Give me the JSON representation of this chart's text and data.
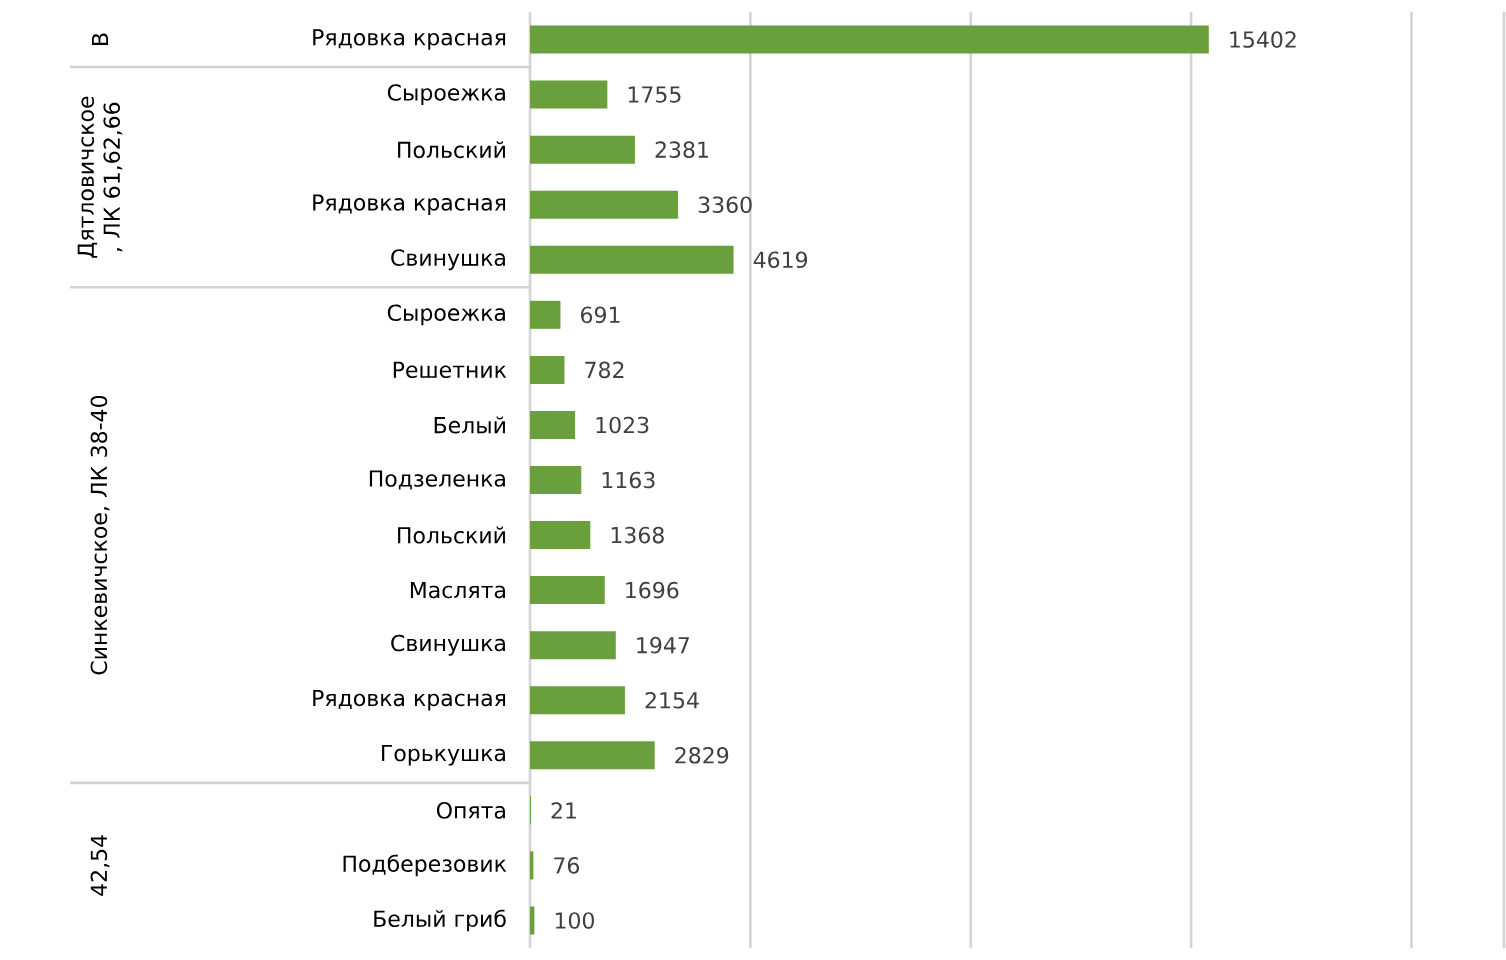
{
  "chart_data": {
    "type": "bar",
    "orientation": "horizontal",
    "categories": [
      "Рядовка красная",
      "Сыроежка",
      "Польский",
      "Рядовка красная",
      "Свинушка",
      "Сыроежка",
      "Решетник",
      "Белый",
      "Подзеленка",
      "Польский",
      "Маслята",
      "Свинушка",
      "Рядовка красная",
      "Горькушка",
      "Опята",
      "Подберезовик",
      "Белый гриб"
    ],
    "values": [
      15402,
      1755,
      2381,
      3360,
      4619,
      691,
      782,
      1023,
      1163,
      1368,
      1696,
      1947,
      2154,
      2829,
      21,
      76,
      100
    ],
    "color": "#6a9f3e",
    "xlim": [
      0,
      22100
    ],
    "xticks": [
      {
        "value": 0,
        "label": null
      },
      {
        "value": 5000,
        "label": null
      },
      {
        "value": 10000,
        "label": null
      },
      {
        "value": 15000,
        "label": null
      },
      {
        "value": 20000,
        "label": null
      }
    ],
    "tick_labels": "y",
    "grid": "x",
    "data_labels": true,
    "annotations": [
      "В",
      "Дятловичское , ЛК 61,62,66",
      "Синкевичское, ЛК 38-40",
      "42,54"
    ]
  }
}
